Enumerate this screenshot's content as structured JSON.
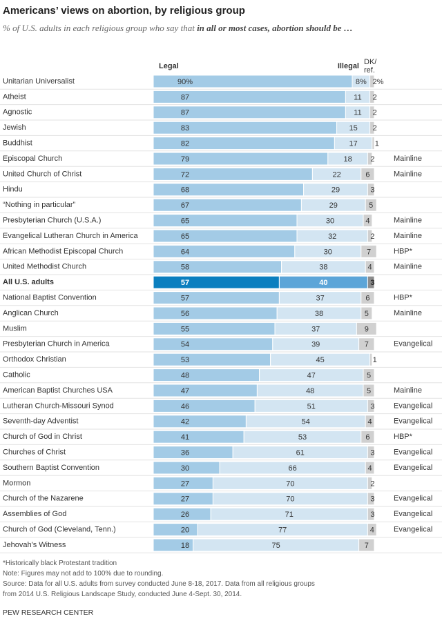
{
  "chart_data": {
    "type": "stacked-bar",
    "title": "Americans’ views on abortion, by religious group",
    "subtitle": "% of U.S. adults in each religious group who say that ",
    "subtitle_emphasis": "in all or most cases, abortion should be …",
    "categories": [
      "Unitarian Universalist",
      "Atheist",
      "Agnostic",
      "Jewish",
      "Buddhist",
      "Episcopal Church",
      "United Church of Christ",
      "Hindu",
      "“Nothing in particular”",
      "Presbyterian Church (U.S.A.)",
      "Evangelical Lutheran Church in America",
      "African Methodist Episcopal Church",
      "United Methodist Church",
      "All U.S. adults",
      "National Baptist Convention",
      "Anglican Church",
      "Muslim",
      "Presbyterian Church in America",
      "Orthodox Christian",
      "Catholic",
      "American Baptist Churches USA",
      "Lutheran Church-Missouri Synod",
      "Seventh-day Adventist",
      "Church of God in Christ",
      "Churches of Christ",
      "Southern Baptist Convention",
      "Mormon",
      "Church of the Nazarene",
      "Assemblies of God",
      "Church of God (Cleveland, Tenn.)",
      "Jehovah's Witness"
    ],
    "traditions": [
      null,
      null,
      null,
      null,
      null,
      "Mainline",
      "Mainline",
      null,
      null,
      "Mainline",
      "Mainline",
      "HBP*",
      "Mainline",
      null,
      "HBP*",
      "Mainline",
      null,
      "Evangelical",
      null,
      null,
      "Mainline",
      "Evangelical",
      "Evangelical",
      "HBP*",
      "Evangelical",
      "Evangelical",
      null,
      "Evangelical",
      "Evangelical",
      "Evangelical",
      null
    ],
    "highlight_index": 13,
    "xlim": [
      0,
      100
    ],
    "series": [
      {
        "name": "Legal",
        "color": "#a3cbe6",
        "highlight_color": "#0b7fbf",
        "values": [
          90,
          87,
          87,
          83,
          82,
          79,
          72,
          68,
          67,
          65,
          65,
          64,
          58,
          57,
          57,
          56,
          55,
          54,
          53,
          48,
          47,
          46,
          42,
          41,
          36,
          30,
          27,
          27,
          26,
          20,
          18
        ],
        "value_labels": [
          "90%",
          "87",
          "87",
          "83",
          "82",
          "79",
          "72",
          "68",
          "67",
          "65",
          "65",
          "64",
          "58",
          "57",
          "57",
          "56",
          "55",
          "54",
          "53",
          "48",
          "47",
          "46",
          "42",
          "41",
          "36",
          "30",
          "27",
          "27",
          "26",
          "20",
          "18"
        ]
      },
      {
        "name": "Illegal",
        "color": "#d3e5f2",
        "highlight_color": "#5ca5d8",
        "values": [
          8,
          11,
          11,
          15,
          17,
          18,
          22,
          29,
          29,
          30,
          32,
          30,
          38,
          40,
          37,
          38,
          37,
          39,
          45,
          47,
          48,
          51,
          54,
          53,
          61,
          66,
          70,
          70,
          71,
          77,
          75
        ],
        "value_labels": [
          "8%",
          "11",
          "11",
          "15",
          "17",
          "18",
          "22",
          "29",
          "29",
          "30",
          "32",
          "30",
          "38",
          "40",
          "37",
          "38",
          "37",
          "39",
          "45",
          "47",
          "48",
          "51",
          "54",
          "53",
          "61",
          "66",
          "70",
          "70",
          "71",
          "77",
          "75"
        ]
      },
      {
        "name": "DK/ref.",
        "color": "#d0d0d0",
        "highlight_color": "#8c8c8c",
        "values": [
          2,
          2,
          2,
          2,
          1,
          2,
          6,
          3,
          5,
          4,
          2,
          7,
          4,
          3,
          6,
          5,
          9,
          7,
          1,
          5,
          5,
          3,
          4,
          6,
          3,
          4,
          2,
          3,
          3,
          4,
          7
        ],
        "value_labels": [
          "2%",
          "2",
          "2",
          "2",
          "1",
          "2",
          "6",
          "3",
          "5",
          "4",
          "2",
          "7",
          "4",
          "3",
          "6",
          "5",
          "9",
          "7",
          "1",
          "5",
          "5",
          "3",
          "4",
          "6",
          "3",
          "4",
          "2",
          "3",
          "3",
          "4",
          "7"
        ]
      }
    ],
    "notes": [
      "*Historically black Protestant tradition",
      "Note: Figures may not add to 100% due to rounding.",
      "Source: Data for all U.S. adults from survey conducted June 8-18, 2017. Data from all religious groups",
      "from 2014 U.S. Religious Landscape Study, conducted June 4-Sept. 30, 2014."
    ],
    "credit": "PEW RESEARCH CENTER"
  }
}
